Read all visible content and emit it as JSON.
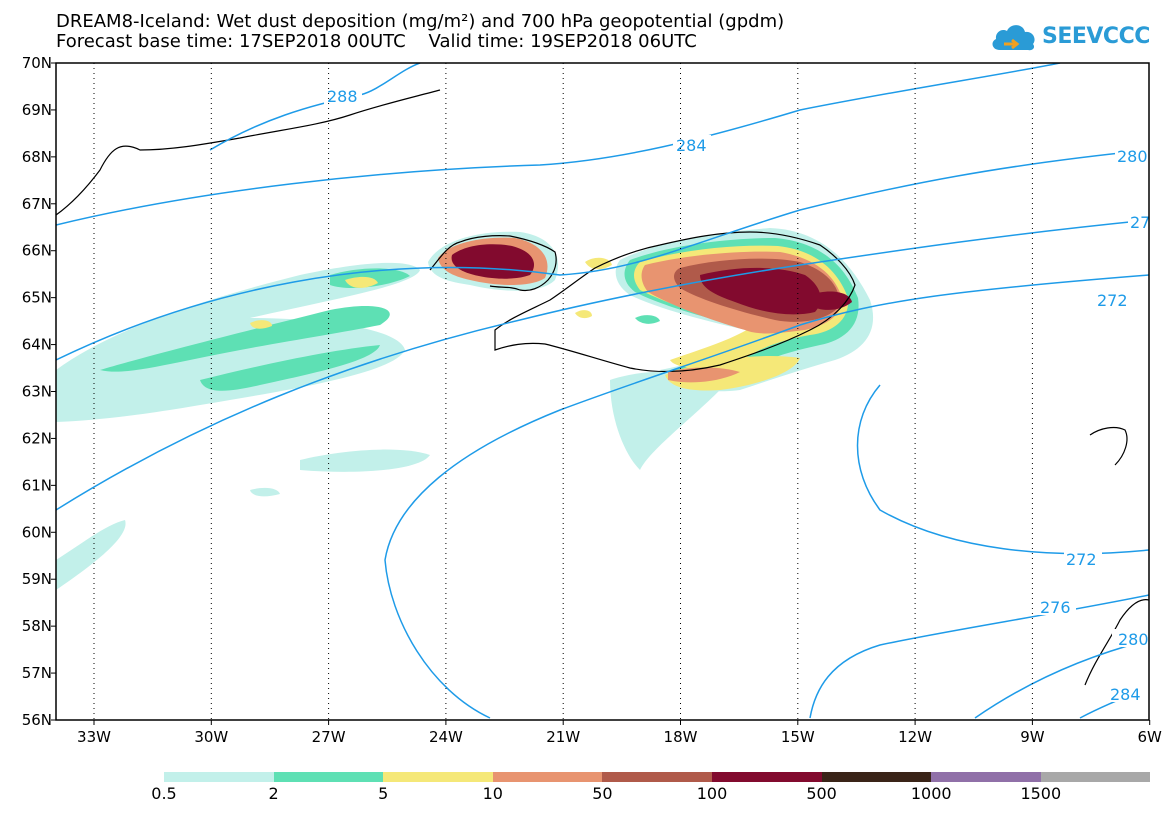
{
  "title": {
    "line1": "DREAM8-Iceland: Wet dust deposition (mg/m²) and 700 hPa geopotential (gpdm)",
    "line2": "Forecast base time: 17SEP2018 00UTC    Valid time: 19SEP2018 06UTC"
  },
  "logo": {
    "text": "SEEVCCC"
  },
  "map": {
    "lat_labels": [
      "70N",
      "69N",
      "68N",
      "67N",
      "66N",
      "65N",
      "64N",
      "63N",
      "62N",
      "61N",
      "60N",
      "59N",
      "58N",
      "57N",
      "56N"
    ],
    "lon_labels": [
      "33W",
      "30W",
      "27W",
      "24W",
      "21W",
      "18W",
      "15W",
      "12W",
      "9W",
      "6W"
    ],
    "contour_labels": [
      "288",
      "284",
      "280",
      "27",
      "272",
      "272",
      "276",
      "280",
      "284"
    ],
    "contour_color": "#1e9be8",
    "land_outline_color": "#000000"
  },
  "colorbar": {
    "labels": [
      "0.5",
      "2",
      "5",
      "10",
      "50",
      "100",
      "500",
      "1000",
      "1500"
    ],
    "colors": [
      "#c2f0ea",
      "#5ee0b4",
      "#f5e878",
      "#e89470",
      "#b05a4a",
      "#820a2e",
      "#3a2418",
      "#9070a8",
      "#a8a8a8"
    ]
  }
}
